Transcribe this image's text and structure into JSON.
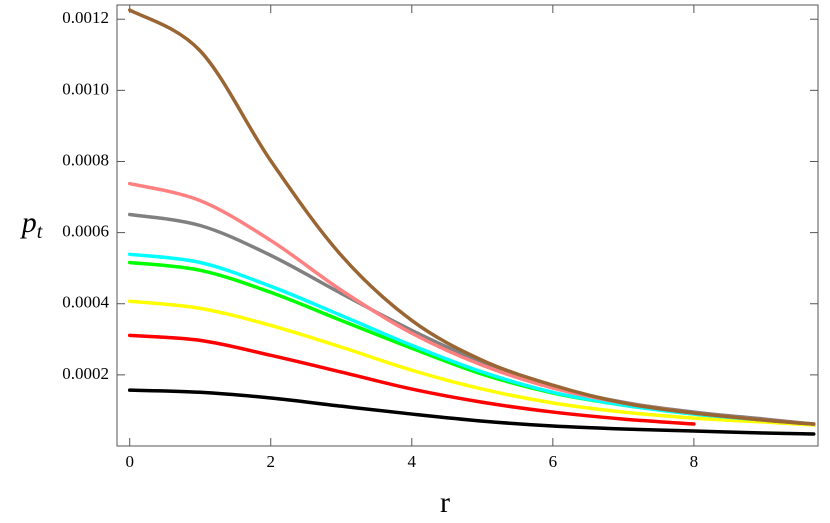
{
  "chart_data": {
    "type": "line",
    "x_label": "r",
    "y_label": {
      "base": "p",
      "sub": "t"
    },
    "x": [
      0,
      1,
      2,
      3,
      4,
      5,
      6,
      7,
      8,
      9,
      9.7
    ],
    "series": [
      {
        "color": "#000000",
        "values": [
          0.000157,
          0.000151,
          0.000135,
          0.000112,
          8.98e-05,
          7.01e-05,
          5.61e-05,
          4.77e-05,
          4.21e-05,
          3.65e-05,
          3.37e-05
        ]
      },
      {
        "color": "#ff0000",
        "values": [
          0.000311,
          0.000297,
          0.000255,
          0.000208,
          0.00016,
          0.000123,
          9.54e-05,
          7.57e-05,
          6.17e-05,
          null,
          null
        ]
      },
      {
        "color": "#ffff00",
        "values": [
          0.000407,
          0.000387,
          0.000339,
          0.000278,
          0.000213,
          0.00016,
          0.000121,
          9.54e-05,
          7.85e-05,
          6.73e-05,
          5.89e-05
        ]
      },
      {
        "color": "#00ff00",
        "values": [
          0.000516,
          0.000494,
          0.000432,
          0.000353,
          0.000275,
          0.000202,
          0.000149,
          0.000115,
          8.98e-05,
          7.29e-05,
          6.17e-05
        ]
      },
      {
        "color": "#00ffff",
        "values": [
          0.000539,
          0.000516,
          0.000449,
          0.000367,
          0.000283,
          0.000208,
          0.000151,
          0.000115,
          8.98e-05,
          7.29e-05,
          6.17e-05
        ]
      },
      {
        "color": "#808080",
        "values": [
          0.000651,
          0.00062,
          0.000536,
          0.000429,
          0.000325,
          0.000236,
          0.000168,
          0.000123,
          9.54e-05,
          7.57e-05,
          6.17e-05
        ]
      },
      {
        "color": "#ff8080",
        "values": [
          0.000738,
          0.00069,
          0.000578,
          0.000438,
          0.000317,
          0.000227,
          0.000163,
          0.000121,
          9.26e-05,
          7.29e-05,
          6.17e-05
        ]
      },
      {
        "color": "#996633",
        "values": [
          0.001226,
          0.001111,
          0.000802,
          0.000536,
          0.000353,
          0.000241,
          0.000171,
          0.000121,
          9.26e-05,
          7.29e-05,
          6.17e-05
        ]
      }
    ],
    "xlim": [
      -0.18,
      9.76
    ],
    "ylim": [
      0,
      0.00124
    ],
    "xticks": [
      0,
      2,
      4,
      6,
      8
    ],
    "yticks": [
      0.0002,
      0.0004,
      0.0006,
      0.0008,
      {
        "value": 0.001,
        "label": "0.0010"
      },
      0.0012
    ],
    "grid": false
  }
}
